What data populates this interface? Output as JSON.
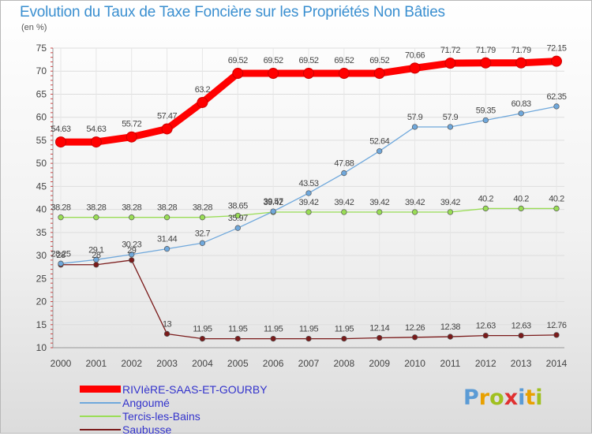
{
  "title": "Evolution du Taux de Taxe Foncière sur les Propriétés Non Bâties",
  "unit_label": "(en %)",
  "logo": {
    "text": "Proxiti",
    "letter_colors": [
      "#5b9bd5",
      "#e8a000",
      "#a0c020",
      "#e03030",
      "#5b9bd5",
      "#e8a000",
      "#a0c020"
    ]
  },
  "chart_data": {
    "type": "line",
    "x": [
      "2000",
      "2001",
      "2002",
      "2003",
      "2004",
      "2005",
      "2006",
      "2007",
      "2008",
      "2009",
      "2010",
      "2011",
      "2012",
      "2013",
      "2014"
    ],
    "ylim": [
      10,
      75
    ],
    "yticks": [
      10,
      15,
      20,
      25,
      30,
      35,
      40,
      45,
      50,
      55,
      60,
      65,
      70,
      75
    ],
    "grid": true,
    "legend_position": "bottom-left",
    "series": [
      {
        "name": "RIVIèRE-SAAS-ET-GOURBY",
        "color": "#ff0000",
        "values": [
          54.63,
          54.63,
          55.72,
          57.47,
          63.2,
          69.52,
          69.52,
          69.52,
          69.52,
          69.52,
          70.66,
          71.72,
          71.79,
          71.79,
          72.15
        ],
        "labels": [
          "54.63",
          "54.63",
          "55.72",
          "57.47",
          "63.2",
          "69.52",
          "69.52",
          "69.52",
          "69.52",
          "69.52",
          "70.66",
          "71.72",
          "71.79",
          "71.79",
          "72.15"
        ]
      },
      {
        "name": "Angoumé",
        "color": "#6fa8dc",
        "values": [
          28.25,
          29.1,
          30.23,
          31.44,
          32.7,
          35.97,
          39.57,
          43.53,
          47.88,
          52.64,
          57.9,
          57.9,
          59.35,
          60.83,
          62.35
        ],
        "labels": [
          "28.25",
          "29.1",
          "30.23",
          "31.44",
          "32.7",
          "35.97",
          "39.57",
          "43.53",
          "47.88",
          "52.64",
          "57.9",
          "57.9",
          "59.35",
          "60.83",
          "62.35"
        ]
      },
      {
        "name": "Tercis-les-Bains",
        "color": "#99dd55",
        "values": [
          38.28,
          38.28,
          38.28,
          38.28,
          38.28,
          38.65,
          39.42,
          39.42,
          39.42,
          39.42,
          39.42,
          39.42,
          40.2,
          40.2,
          40.2
        ],
        "labels": [
          "38.28",
          "38.28",
          "38.28",
          "38.28",
          "38.28",
          "38.65",
          "39.42",
          "39.42",
          "39.42",
          "39.42",
          "39.42",
          "39.42",
          "40.2",
          "40.2",
          "40.2"
        ]
      },
      {
        "name": "Saubusse",
        "color": "#7a1a1a",
        "values": [
          28,
          28,
          29,
          13,
          11.95,
          11.95,
          11.95,
          11.95,
          11.95,
          12.14,
          12.26,
          12.38,
          12.63,
          12.63,
          12.76
        ],
        "labels": [
          "28",
          "28",
          "29",
          "13",
          "11.95",
          "11.95",
          "11.95",
          "11.95",
          "11.95",
          "12.14",
          "12.26",
          "12.38",
          "12.63",
          "12.63",
          "12.76"
        ]
      }
    ]
  }
}
